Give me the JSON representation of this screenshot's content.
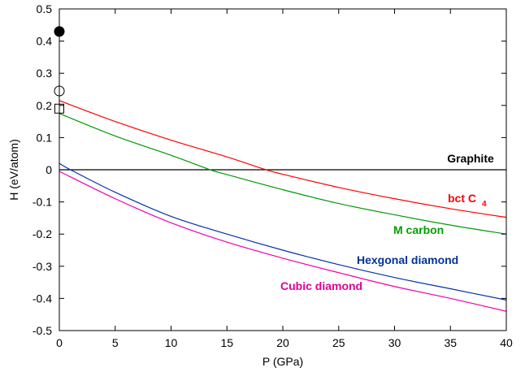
{
  "chart_data": {
    "type": "line",
    "title": "",
    "xlabel": "P (GPa)",
    "ylabel": "H (eV/atom)",
    "xlim": [
      0,
      40
    ],
    "ylim": [
      -0.5,
      0.5
    ],
    "xticks": [
      0,
      5,
      10,
      15,
      20,
      25,
      30,
      35,
      40
    ],
    "xtick_labels": [
      "0",
      "5",
      "10",
      "15",
      "20",
      "25",
      "30",
      "35",
      "40"
    ],
    "yticks": [
      0.5,
      0.4,
      0.3,
      0.2,
      0.1,
      0,
      -0.1,
      -0.2,
      -0.3,
      -0.4,
      -0.5
    ],
    "ytick_labels": [
      "0.5",
      "0.4",
      "0.3",
      "0.2",
      "0.1",
      "0",
      "-0.1",
      "-0.2",
      "-0.3",
      "-0.4",
      "-0.5"
    ],
    "grid": false,
    "series": [
      {
        "name": "Graphite",
        "color": "#000000",
        "label_color": "#000000",
        "x": [
          0,
          40
        ],
        "y": [
          0,
          0
        ]
      },
      {
        "name": "bct C",
        "name_subscript": "4",
        "color": "#ff0000",
        "label_color": "#ff0000",
        "x": [
          0,
          5,
          10,
          15,
          18.5,
          20,
          25,
          30,
          35,
          40
        ],
        "y": [
          0.215,
          0.15,
          0.092,
          0.04,
          0.0,
          -0.014,
          -0.055,
          -0.09,
          -0.121,
          -0.148
        ]
      },
      {
        "name": "M carbon",
        "color": "#009900",
        "label_color": "#00a000",
        "x": [
          0,
          5,
          10,
          13.5,
          15,
          20,
          25,
          30,
          35,
          40
        ],
        "y": [
          0.175,
          0.105,
          0.045,
          0.0,
          -0.015,
          -0.062,
          -0.105,
          -0.14,
          -0.172,
          -0.2
        ]
      },
      {
        "name": "Hexgonal diamond",
        "color": "#0033aa",
        "label_color": "#003399",
        "x": [
          0,
          1,
          5,
          10,
          15,
          20,
          25,
          30,
          35,
          40
        ],
        "y": [
          0.02,
          0.0,
          -0.07,
          -0.145,
          -0.2,
          -0.25,
          -0.295,
          -0.335,
          -0.37,
          -0.405
        ]
      },
      {
        "name": "Cubic diamond",
        "color": "#ee00aa",
        "label_color": "#dd0099",
        "x": [
          0,
          5,
          10,
          15,
          20,
          25,
          30,
          35,
          40
        ],
        "y": [
          -0.005,
          -0.09,
          -0.165,
          -0.225,
          -0.275,
          -0.32,
          -0.363,
          -0.4,
          -0.44
        ]
      }
    ],
    "markers": [
      {
        "shape": "circle",
        "filled": true,
        "x": 0,
        "y": 0.43
      },
      {
        "shape": "circle",
        "filled": false,
        "x": 0,
        "y": 0.245
      },
      {
        "shape": "square",
        "filled": false,
        "x": 0,
        "y": 0.19
      }
    ]
  }
}
